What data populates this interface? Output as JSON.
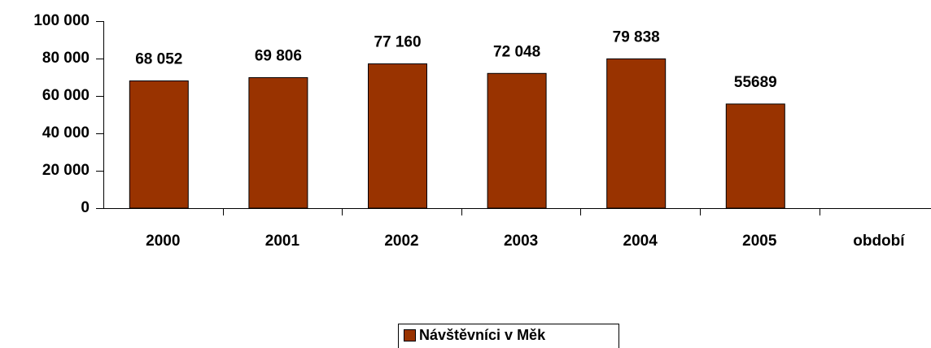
{
  "chart_data": {
    "type": "bar",
    "categories": [
      "2000",
      "2001",
      "2002",
      "2003",
      "2004",
      "2005",
      "období"
    ],
    "series": [
      {
        "name": "Návštěvníci v Měk",
        "color": "#993300",
        "values": [
          68052,
          69806,
          77160,
          72048,
          79838,
          55689,
          null
        ],
        "value_labels": [
          "68 052",
          "69 806",
          "77 160",
          "72 048",
          "79 838",
          "55689",
          null
        ]
      }
    ],
    "ylim": [
      0,
      100000
    ],
    "yticks": [
      0,
      {
        "value": 20000,
        "label": "20 000"
      },
      {
        "value": 40000,
        "label": "40 000"
      },
      {
        "value": 60000,
        "label": "60 000"
      },
      {
        "value": 80000,
        "label": "80 000"
      },
      {
        "value": 100000,
        "label": "100 000"
      }
    ],
    "legend": "bottom"
  }
}
